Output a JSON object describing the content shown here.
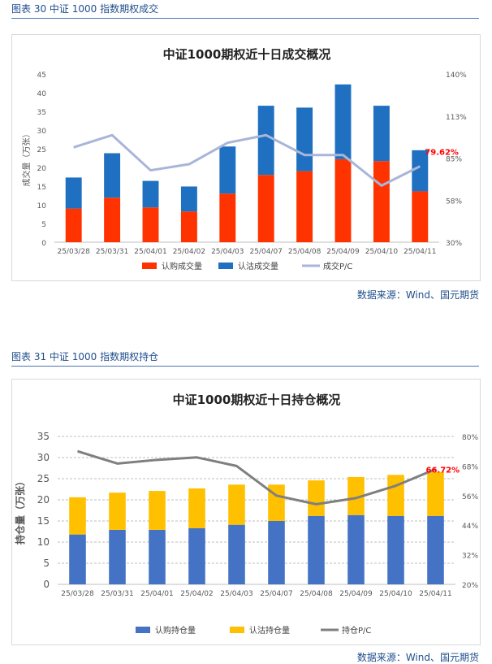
{
  "figure1": {
    "caption": "图表 30  中证 1000 指数期权成交",
    "source": "数据来源：Wind、国元期货"
  },
  "figure2": {
    "caption": "图表 31  中证 1000 指数期权持仓",
    "source": "数据来源：Wind、国元期货"
  },
  "colors": {
    "call": "#ff3300",
    "put": "#1f70c1",
    "pcr1": "#a9b5d8",
    "call_oi": "#4472c4",
    "put_oi": "#ffc000",
    "pcr2": "#7f7f7f",
    "highlight": "#ff0000",
    "caption": "#1f4e8c"
  },
  "chart_data": [
    {
      "type": "bar",
      "stacked": true,
      "title": "中证1000期权近十日成交概况",
      "categories": [
        "25/03/28",
        "25/03/31",
        "25/04/01",
        "25/04/02",
        "25/04/03",
        "25/04/07",
        "25/04/08",
        "25/04/09",
        "25/04/10",
        "25/04/11"
      ],
      "series": [
        {
          "name": "认购成交量",
          "kind": "bar",
          "axis": "left",
          "values": [
            9.0,
            11.9,
            9.3,
            8.2,
            13.0,
            18.0,
            19.0,
            22.2,
            21.7,
            13.6
          ]
        },
        {
          "name": "认沽成交量",
          "kind": "bar",
          "axis": "left",
          "values": [
            8.3,
            11.9,
            7.1,
            6.7,
            12.6,
            18.5,
            17.0,
            20.0,
            14.8,
            11.0
          ]
        },
        {
          "name": "成交P/C",
          "kind": "line",
          "axis": "right",
          "values": [
            92,
            100,
            77,
            81,
            95,
            100,
            87,
            87,
            67,
            79.62
          ]
        }
      ],
      "ylabel": "成交量（万张）",
      "ylim": [
        0,
        45
      ],
      "yticks": [
        0,
        5,
        10,
        15,
        20,
        25,
        30,
        35,
        40,
        45
      ],
      "y2lim": [
        30,
        140
      ],
      "y2ticks": [
        "30%",
        "58%",
        "85%",
        "113%",
        "140%"
      ],
      "annotation": "79.62%",
      "grid": false,
      "legend": "bottom"
    },
    {
      "type": "bar",
      "stacked": true,
      "title": "中证1000期权近十日持仓概况",
      "categories": [
        "25/03/28",
        "25/03/31",
        "25/04/01",
        "25/04/02",
        "25/04/03",
        "25/04/07",
        "25/04/08",
        "25/04/09",
        "25/04/10",
        "25/04/11"
      ],
      "series": [
        {
          "name": "认购持仓量",
          "kind": "bar",
          "axis": "left",
          "values": [
            11.8,
            12.9,
            12.9,
            13.3,
            14.1,
            15.0,
            16.2,
            16.4,
            16.2,
            16.2
          ]
        },
        {
          "name": "认沽持仓量",
          "kind": "bar",
          "axis": "left",
          "values": [
            8.8,
            8.8,
            9.2,
            9.4,
            9.5,
            8.6,
            8.4,
            9.0,
            9.7,
            10.4
          ]
        },
        {
          "name": "持仓P/C",
          "kind": "line",
          "axis": "right",
          "values": [
            74,
            69,
            70.5,
            71.5,
            68,
            56,
            52.5,
            55,
            60,
            66.72
          ]
        }
      ],
      "ylabel": "持仓量（万张）",
      "ylim": [
        0,
        35
      ],
      "yticks": [
        0,
        5,
        10,
        15,
        20,
        25,
        30,
        35
      ],
      "y2lim": [
        20,
        80
      ],
      "y2ticks": [
        "20%",
        "32%",
        "44%",
        "56%",
        "68%",
        "80%"
      ],
      "annotation": "66.72%",
      "grid": true,
      "legend": "bottom"
    }
  ]
}
